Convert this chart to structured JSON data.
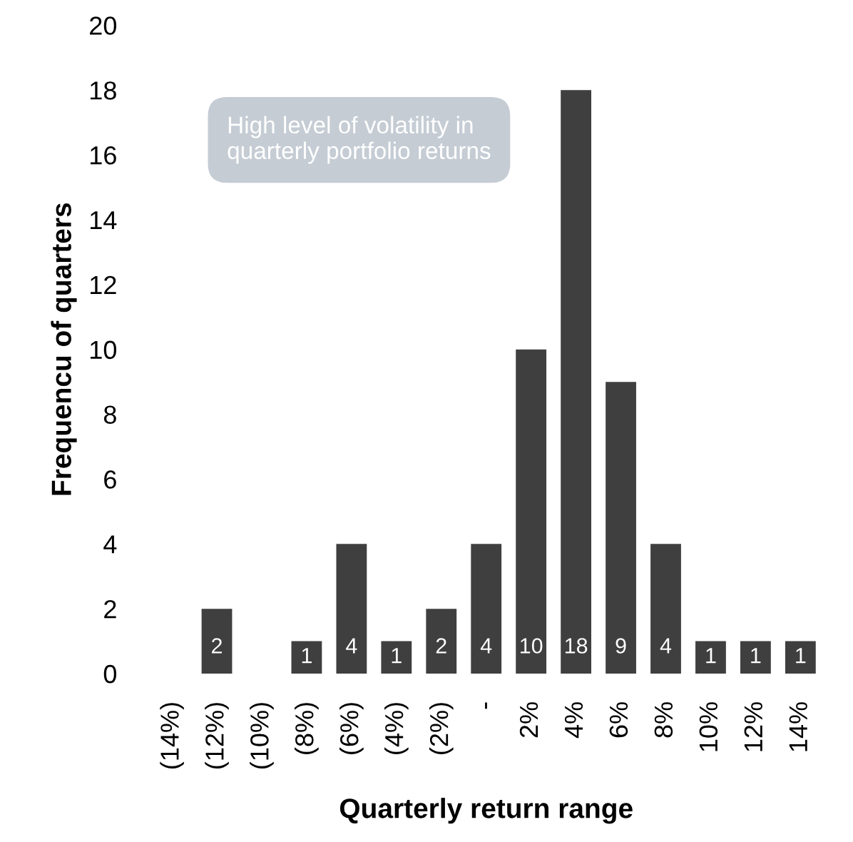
{
  "chart_data": {
    "type": "bar",
    "categories": [
      "(14%)",
      "(12%)",
      "(10%)",
      "(8%)",
      "(6%)",
      "(4%)",
      "(2%)",
      "-",
      "2%",
      "4%",
      "6%",
      "8%",
      "10%",
      "12%",
      "14%"
    ],
    "values": [
      0,
      2,
      0,
      1,
      4,
      1,
      2,
      4,
      10,
      18,
      9,
      4,
      1,
      1,
      1
    ],
    "value_labels": [
      null,
      "2",
      null,
      "1",
      "4",
      "1",
      "2",
      "4",
      "10",
      "18",
      "9",
      "4",
      "1",
      "1",
      "1"
    ],
    "color": "#3f3f3f",
    "xlabel": "Quarterly return range",
    "ylabel": "Frequencu of quarters",
    "ylim": [
      0,
      20
    ],
    "yticks": [
      0,
      2,
      4,
      6,
      8,
      10,
      12,
      14,
      16,
      18,
      20
    ],
    "annotations": [
      "High level of volatility in quarterly portfolio returns"
    ],
    "grid": false,
    "legend": false
  }
}
